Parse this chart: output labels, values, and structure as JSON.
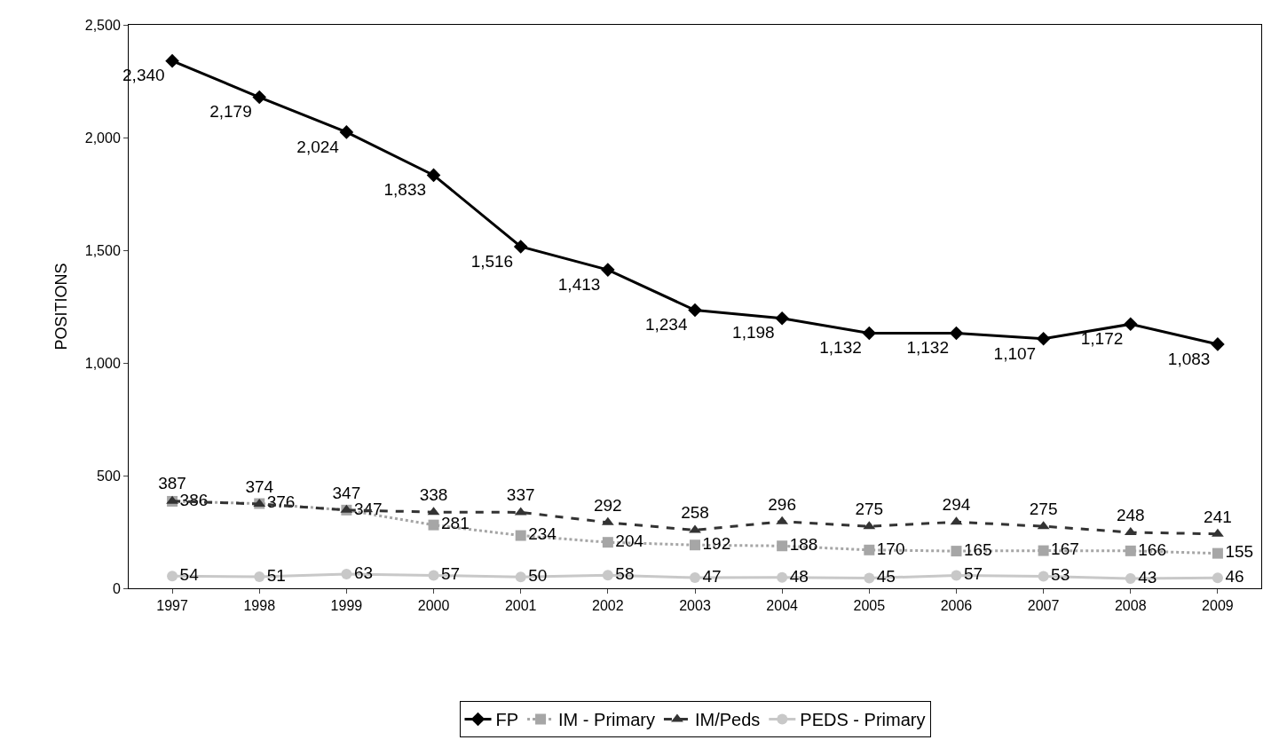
{
  "chart_data": {
    "type": "line",
    "ylabel": "POSITIONS",
    "categories": [
      "1997",
      "1998",
      "1999",
      "2000",
      "2001",
      "2002",
      "2003",
      "2004",
      "2005",
      "2006",
      "2007",
      "2008",
      "2009"
    ],
    "series": [
      {
        "name": "FP",
        "color": "#000000",
        "marker": "diamond",
        "line_style": "solid",
        "values": [
          2340,
          2179,
          2024,
          1833,
          1516,
          1413,
          1234,
          1198,
          1132,
          1132,
          1107,
          1172,
          1083
        ],
        "value_labels": [
          "2,340",
          "2,179",
          "2,024",
          "1,833",
          "1,516",
          "1,413",
          "1,234",
          "1,198",
          "1,132",
          "1,132",
          "1,107",
          "1,172",
          "1,083"
        ]
      },
      {
        "name": "IM - Primary",
        "color": "#a6a6a6",
        "marker": "square",
        "line_style": "dotted",
        "values": [
          386,
          376,
          347,
          281,
          234,
          204,
          192,
          188,
          170,
          165,
          167,
          166,
          155
        ]
      },
      {
        "name": "IM/Peds",
        "color": "#333333",
        "marker": "triangle",
        "line_style": "dashed",
        "values": [
          387,
          374,
          347,
          338,
          337,
          292,
          258,
          296,
          275,
          294,
          275,
          248,
          241
        ]
      },
      {
        "name": "PEDS - Primary",
        "color": "#c8c8c8",
        "marker": "circle",
        "line_style": "solid",
        "values": [
          54,
          51,
          63,
          57,
          50,
          58,
          47,
          48,
          45,
          57,
          53,
          43,
          46
        ]
      }
    ],
    "ylim": [
      0,
      2500
    ],
    "yticks": [
      {
        "value": 0,
        "label": "0"
      },
      {
        "value": 500,
        "label": "500"
      },
      {
        "value": 1000,
        "label": "1,000"
      },
      {
        "value": 1500,
        "label": "1,500"
      },
      {
        "value": 2000,
        "label": "2,000"
      },
      {
        "value": 2500,
        "label": "2,500"
      }
    ],
    "legend": "bottom",
    "data_labels": true
  }
}
